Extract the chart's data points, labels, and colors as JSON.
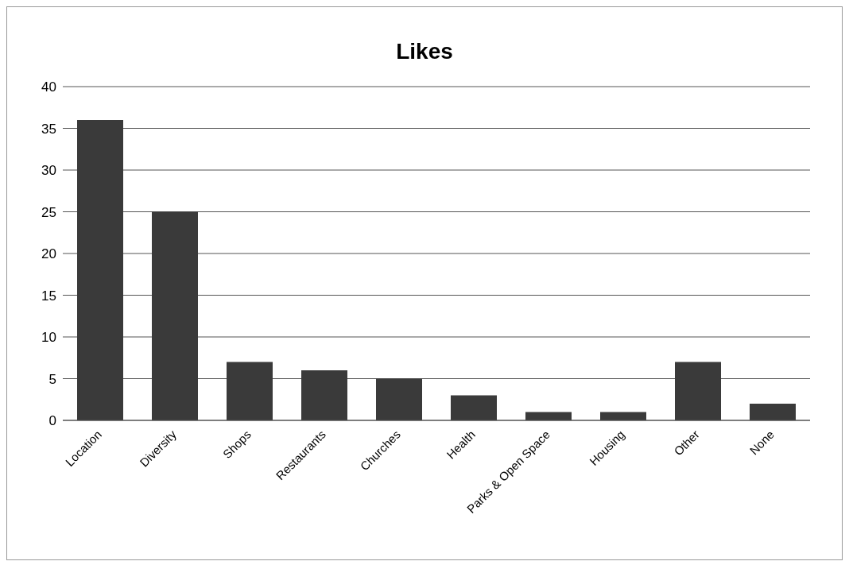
{
  "chart_data": {
    "type": "bar",
    "title": "Likes",
    "categories": [
      "Location",
      "Diversity",
      "Shops",
      "Restaurants",
      "Churches",
      "Health",
      "Parks & Open Space",
      "Housing",
      "Other",
      "None"
    ],
    "values": [
      36,
      25,
      7,
      6,
      5,
      3,
      1,
      1,
      7,
      2
    ],
    "color": "#3a3a3a",
    "ylim": [
      0,
      40
    ],
    "yticks": [
      0,
      5,
      10,
      15,
      20,
      25,
      30,
      35,
      40
    ],
    "grid": "y"
  }
}
